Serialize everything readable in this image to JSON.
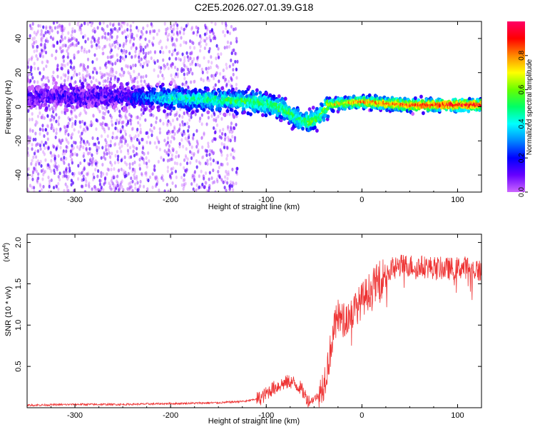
{
  "title": "C2E5.2026.027.01.39.G18",
  "chart_data": [
    {
      "type": "heatmap",
      "title": "C2E5.2026.027.01.39.G18",
      "xlabel": "Height of straight line (km)",
      "ylabel": "Frequency (Hz)",
      "xlim": [
        -350,
        125
      ],
      "ylim": [
        -50,
        50
      ],
      "xticks": [
        -300,
        -200,
        -100,
        0,
        100
      ],
      "yticks": [
        -40,
        -20,
        0,
        20,
        40
      ],
      "colorbar": {
        "label": "Normalized spectral amplitude",
        "range": [
          0,
          1
        ],
        "ticks": [
          "0.0",
          "0.2",
          "0.4",
          "0.6",
          "0.8"
        ],
        "tick_values": [
          0.0,
          0.2,
          0.4,
          0.6,
          0.8
        ],
        "colormap": [
          "#cc66ff",
          "#6600ff",
          "#0000ff",
          "#0088ff",
          "#00ffff",
          "#00ff66",
          "#66ff00",
          "#ffff00",
          "#ff8800",
          "#ff0000",
          "#ff0066"
        ]
      },
      "ridge": {
        "x": [
          -350,
          -300,
          -250,
          -200,
          -150,
          -120,
          -100,
          -80,
          -65,
          -55,
          -45,
          -35,
          -20,
          0,
          20,
          50,
          80,
          100,
          125
        ],
        "y": [
          6,
          6,
          6,
          5,
          4,
          3,
          2,
          -2,
          -8,
          -9,
          -6,
          1,
          2,
          3,
          2,
          1,
          1,
          1,
          1
        ],
        "amplitude": [
          0.1,
          0.12,
          0.14,
          0.45,
          0.5,
          0.55,
          0.55,
          0.55,
          0.5,
          0.6,
          0.55,
          0.7,
          0.75,
          0.8,
          0.85,
          0.9,
          0.95,
          0.95,
          0.95
        ]
      },
      "scatter_regions": [
        {
          "x_from": -350,
          "x_to": -225,
          "density": "high"
        },
        {
          "x_from": -225,
          "x_to": -205,
          "density": "low"
        },
        {
          "x_from": -205,
          "x_to": -130,
          "density": "medium"
        }
      ]
    },
    {
      "type": "line",
      "title": "",
      "xlabel": "Height of straight line (km)",
      "ylabel": "SNR (10 * v/v)",
      "ylabel_multiplier": "(x10",
      "ylabel_multiplier_exp": "4",
      "ylabel_multiplier_close": ")",
      "xlim": [
        -350,
        125
      ],
      "ylim": [
        0,
        2.1
      ],
      "xticks": [
        -300,
        -200,
        -100,
        0,
        100
      ],
      "yticks": [
        0.5,
        1.0,
        1.5,
        2.0
      ],
      "ytick_labels": [
        "0.5",
        "1.0",
        "1.5",
        "2.0"
      ],
      "color": "#ee3333",
      "series": [
        {
          "name": "SNR",
          "x": [
            -350,
            -300,
            -250,
            -200,
            -150,
            -120,
            -105,
            -95,
            -85,
            -75,
            -65,
            -55,
            -45,
            -40,
            -35,
            -30,
            -25,
            -20,
            -10,
            0,
            10,
            20,
            30,
            40,
            50,
            70,
            90,
            110,
            125
          ],
          "y": [
            0.03,
            0.04,
            0.04,
            0.05,
            0.06,
            0.08,
            0.12,
            0.22,
            0.28,
            0.32,
            0.25,
            0.07,
            0.15,
            0.3,
            0.55,
            0.9,
            1.1,
            1.05,
            1.15,
            1.3,
            1.45,
            1.58,
            1.68,
            1.72,
            1.72,
            1.7,
            1.68,
            1.7,
            1.65
          ]
        }
      ]
    }
  ]
}
